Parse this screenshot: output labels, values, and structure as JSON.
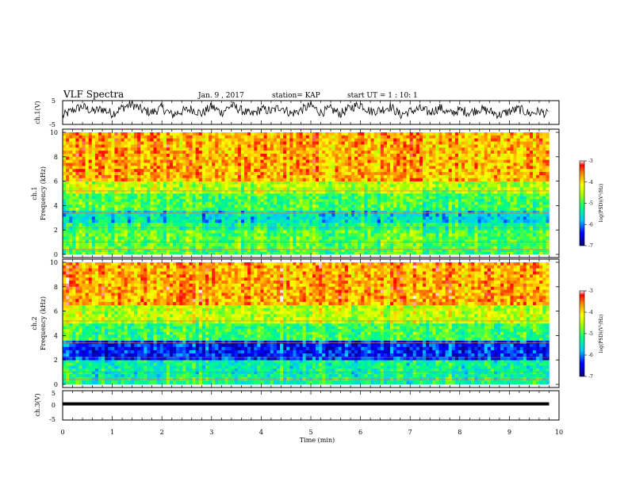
{
  "header": {
    "title": "VLF Spectra",
    "date": "Jan. 9 , 2017",
    "station": "station= KAP",
    "start_ut": "start UT =  1 : 10: 1"
  },
  "chart_data": [
    {
      "type": "line",
      "name": "ch1_waveform",
      "ylabel": "ch.1(V)",
      "ylim": [
        -5,
        5
      ],
      "yticks": [
        "5",
        "-5"
      ],
      "xlim": [
        0,
        10
      ],
      "description_of_signal": "noisy waveform oscillating roughly between -2 and +5 V over the full interval",
      "x": [
        0.0,
        0.2,
        0.4,
        0.6,
        0.8,
        1.0,
        1.2,
        1.4,
        1.6,
        1.8,
        2.0,
        2.2,
        2.4,
        2.6,
        2.8,
        3.0,
        3.2,
        3.4,
        3.6,
        3.8,
        4.0,
        4.2,
        4.4,
        4.6,
        4.8,
        5.0,
        5.2,
        5.4,
        5.6,
        5.8,
        6.0,
        6.2,
        6.4,
        6.6,
        6.8,
        7.0,
        7.2,
        7.4,
        7.6,
        7.8,
        8.0,
        8.2,
        8.4,
        8.6,
        8.8,
        9.0,
        9.2,
        9.4,
        9.6,
        9.8
      ],
      "y": [
        -1.5,
        1.0,
        2.5,
        0.5,
        1.5,
        -0.5,
        2.0,
        3.5,
        1.0,
        0.0,
        2.0,
        -1.0,
        0.5,
        1.5,
        -0.5,
        2.5,
        0.0,
        3.0,
        1.0,
        -1.0,
        1.5,
        0.5,
        2.5,
        -0.5,
        1.0,
        3.0,
        0.0,
        1.5,
        -0.5,
        2.0,
        3.5,
        0.5,
        1.0,
        2.5,
        -1.0,
        0.5,
        1.5,
        0.0,
        2.0,
        -0.5,
        1.0,
        0.0,
        1.5,
        0.5,
        -1.0,
        0.5,
        1.5,
        -0.5,
        0.5,
        -1.0
      ]
    },
    {
      "type": "heatmap",
      "name": "ch1_spectrogram",
      "ylabel": "Frequency (kHz)",
      "channel_label": "ch.1",
      "ylim": [
        0,
        10
      ],
      "yticks": [
        "0",
        "2",
        "4",
        "6",
        "8",
        "10"
      ],
      "xlim": [
        0,
        10
      ],
      "colorbar": {
        "label": "log(PSD)(V²/Hz)",
        "range": [
          -7,
          -3
        ],
        "ticks": [
          "-3",
          "-4",
          "-5",
          "-6",
          "-7"
        ]
      },
      "bands_log_psd": [
        {
          "f_from": 0.0,
          "f_to": 0.4,
          "value": -5.0
        },
        {
          "f_from": 0.4,
          "f_to": 2.0,
          "value": -4.9
        },
        {
          "f_from": 2.0,
          "f_to": 2.6,
          "value": -5.2
        },
        {
          "f_from": 2.6,
          "f_to": 3.6,
          "value": -5.6
        },
        {
          "f_from": 3.6,
          "f_to": 5.0,
          "value": -5.0
        },
        {
          "f_from": 5.0,
          "f_to": 6.0,
          "value": -4.5
        },
        {
          "f_from": 6.0,
          "f_to": 10.0,
          "value": -3.8
        }
      ]
    },
    {
      "type": "heatmap",
      "name": "ch2_spectrogram",
      "ylabel": "Frequency (kHz)",
      "channel_label": "ch.2",
      "ylim": [
        0,
        10
      ],
      "yticks": [
        "0",
        "2",
        "4",
        "6",
        "8",
        "10"
      ],
      "xlim": [
        0,
        10
      ],
      "colorbar": {
        "label": "log(PSD)(V²/Hz)",
        "range": [
          -7,
          -3
        ],
        "ticks": [
          "-3",
          "-4",
          "-5",
          "-6",
          "-7"
        ]
      },
      "bands_log_psd": [
        {
          "f_from": 0.0,
          "f_to": 0.6,
          "value": -5.2
        },
        {
          "f_from": 0.6,
          "f_to": 2.0,
          "value": -5.3
        },
        {
          "f_from": 2.0,
          "f_to": 3.6,
          "value": -6.3
        },
        {
          "f_from": 3.6,
          "f_to": 5.0,
          "value": -5.0
        },
        {
          "f_from": 5.0,
          "f_to": 6.5,
          "value": -4.4
        },
        {
          "f_from": 6.5,
          "f_to": 10.0,
          "value": -3.7
        }
      ]
    },
    {
      "type": "line",
      "name": "ch3_waveform",
      "ylabel": "ch.3(V)",
      "ylim": [
        -5,
        5
      ],
      "yticks": [
        "5",
        "0",
        "-5"
      ],
      "xlim": [
        0,
        10
      ],
      "xlabel": "Time (min)",
      "xticks": [
        "0",
        "1",
        "2",
        "3",
        "4",
        "5",
        "6",
        "7",
        "8",
        "9",
        "10"
      ],
      "x": [
        0.0,
        9.8
      ],
      "y": [
        0.5,
        0.5
      ]
    }
  ],
  "colors": {
    "axes": "#000000",
    "line": "#000000",
    "background": "#ffffff"
  }
}
